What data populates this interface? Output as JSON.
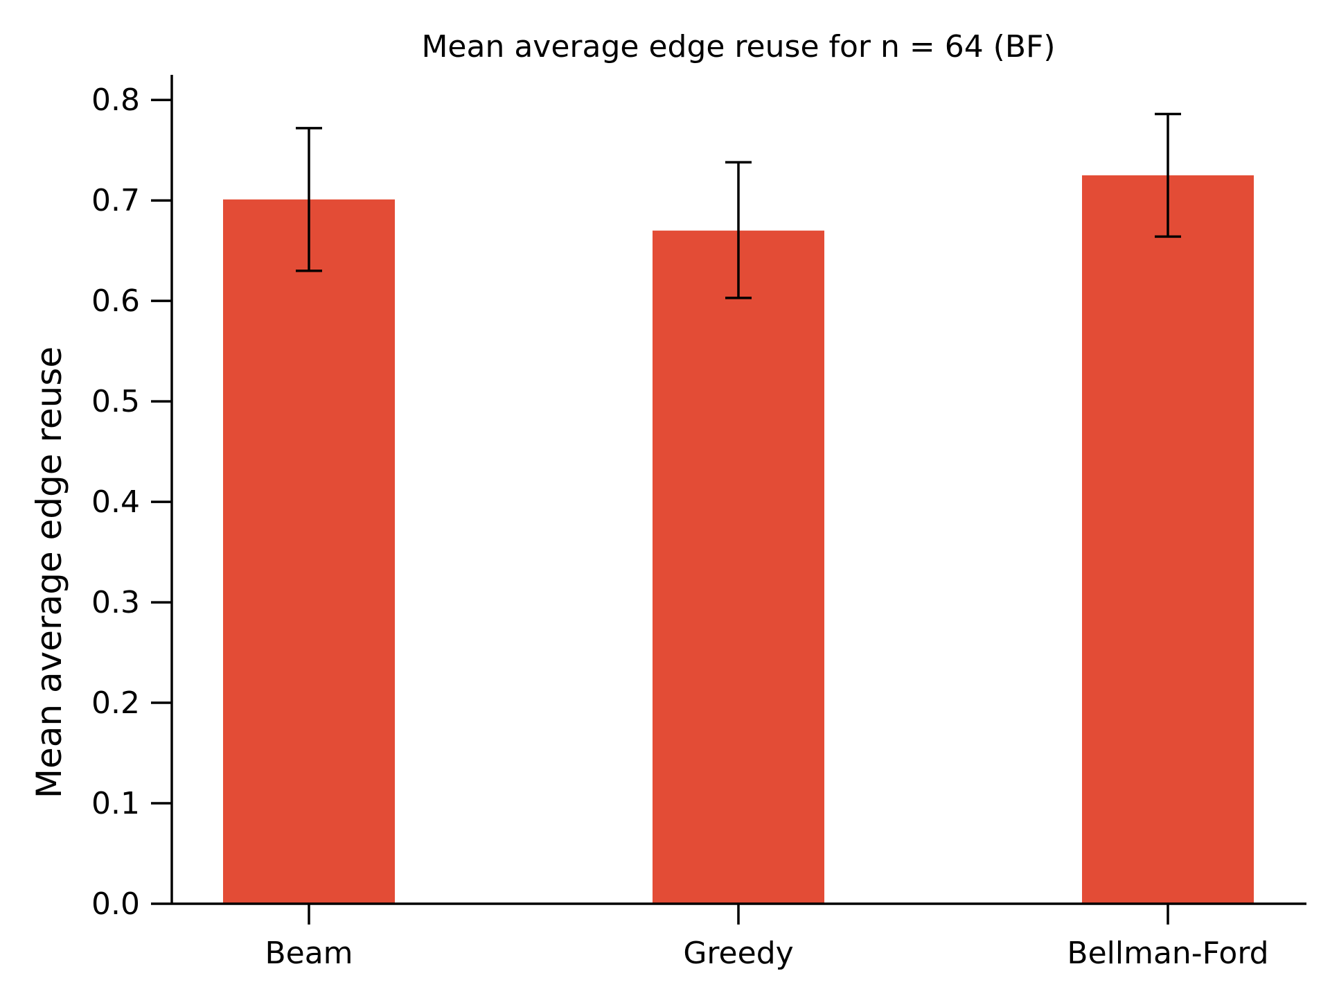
{
  "chart_data": {
    "type": "bar",
    "title": "Mean average edge reuse for n = 64 (BF)",
    "xlabel": "",
    "ylabel": "Mean average edge reuse",
    "categories": [
      "Beam",
      "Greedy",
      "Bellman-Ford"
    ],
    "values": [
      0.701,
      0.67,
      0.725
    ],
    "error_low": [
      0.63,
      0.603,
      0.664
    ],
    "error_high": [
      0.772,
      0.738,
      0.786
    ],
    "ylim": [
      0.0,
      0.825
    ],
    "yticks": [
      "0.0",
      "0.1",
      "0.2",
      "0.3",
      "0.4",
      "0.5",
      "0.6",
      "0.7",
      "0.8"
    ],
    "ytick_values": [
      0.0,
      0.1,
      0.2,
      0.3,
      0.4,
      0.5,
      0.6,
      0.7,
      0.8
    ],
    "grid": false,
    "bar_color": "#e34c36",
    "error_color": "#000000"
  }
}
